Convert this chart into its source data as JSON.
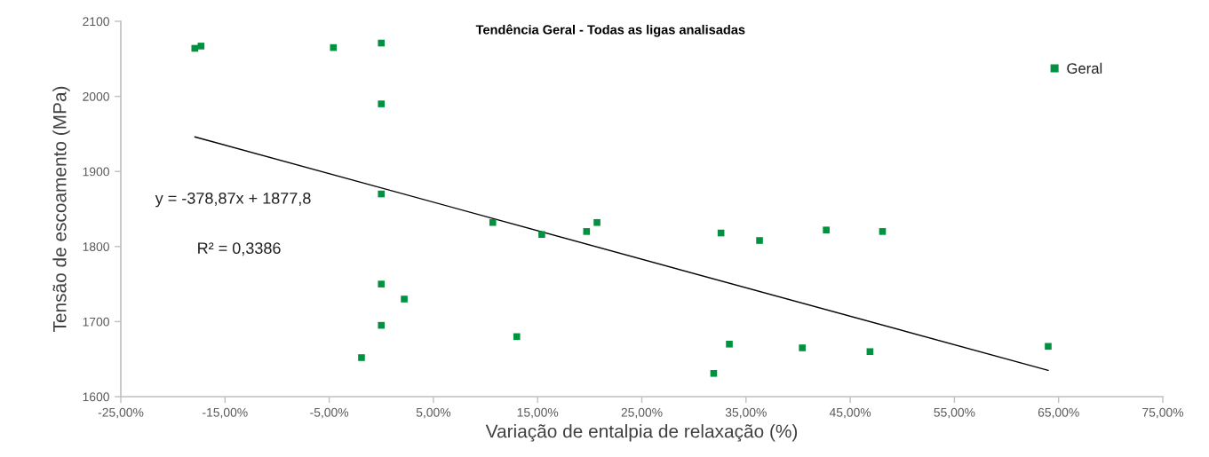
{
  "chart_data": {
    "type": "scatter",
    "title": "Tendência Geral - Todas as ligas analisadas",
    "xlabel": "Variação de entalpia de relaxação (%)",
    "ylabel": "Tensão de escoamento (MPa)",
    "annotations": [
      "y = -378,87x + 1877,8",
      "R² = 0,3386"
    ],
    "series": [
      {
        "name": "Geral",
        "color": "#00923f",
        "marker": "square",
        "x": [
          -17.9,
          -17.3,
          -4.6,
          0.0,
          0.0,
          0.0,
          0.0,
          2.2,
          0.0,
          -1.9,
          10.7,
          13.0,
          15.4,
          19.7,
          20.7,
          32.6,
          31.9,
          33.4,
          36.3,
          40.4,
          42.7,
          46.9,
          48.1,
          64.0
        ],
        "values": [
          2064,
          2067,
          2065,
          2071,
          1990,
          1870,
          1750,
          1730,
          1695,
          1652,
          1832,
          1680,
          1816,
          1820,
          1832,
          1818,
          1631,
          1670,
          1808,
          1665,
          1822,
          1660,
          1820,
          1667
        ]
      },
      {
        "type": "line",
        "color": "#000000",
        "x": [
          -17.9,
          64.0
        ],
        "values": [
          1946,
          1635
        ]
      }
    ],
    "xlim": [
      -25,
      75
    ],
    "xticks": [
      {
        "value": -25,
        "label": "-25,00%"
      },
      {
        "value": -15,
        "label": "-15,00%"
      },
      {
        "value": -5,
        "label": "-5,00%"
      },
      {
        "value": 5,
        "label": "5,00%"
      },
      {
        "value": 15,
        "label": "15,00%"
      },
      {
        "value": 25,
        "label": "25,00%"
      },
      {
        "value": 35,
        "label": "35,00%"
      },
      {
        "value": 45,
        "label": "45,00%"
      },
      {
        "value": 55,
        "label": "55,00%"
      },
      {
        "value": 65,
        "label": "65,00%"
      },
      {
        "value": 75,
        "label": "75,00%"
      }
    ],
    "ylim": [
      1600,
      2100
    ],
    "yticks": [
      1600,
      1700,
      1800,
      1900,
      2000,
      2100
    ],
    "legend": "top right"
  }
}
